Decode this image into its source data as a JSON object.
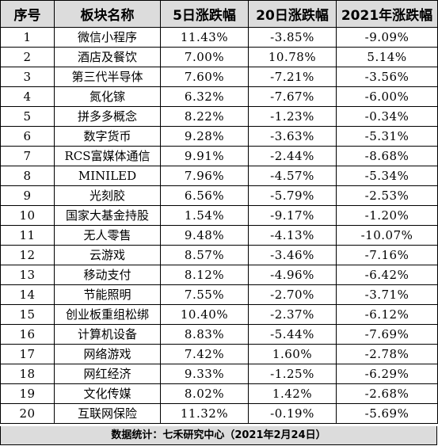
{
  "headers": {
    "index": "序号",
    "sector": "板块名称",
    "chg5": "5日涨跌幅",
    "chg20": "20日涨跌幅",
    "chg2021": "2021年涨跌幅"
  },
  "rows": [
    {
      "index": "1",
      "sector": "微信小程序",
      "chg5": "11.43%",
      "chg20": "-3.85%",
      "chg2021": "-9.09%"
    },
    {
      "index": "2",
      "sector": "酒店及餐饮",
      "chg5": "7.00%",
      "chg20": "10.78%",
      "chg2021": "5.14%"
    },
    {
      "index": "3",
      "sector": "第三代半导体",
      "chg5": "7.60%",
      "chg20": "-7.21%",
      "chg2021": "-3.56%"
    },
    {
      "index": "4",
      "sector": "氮化镓",
      "chg5": "6.32%",
      "chg20": "-7.67%",
      "chg2021": "-6.00%"
    },
    {
      "index": "5",
      "sector": "拼多多概念",
      "chg5": "8.22%",
      "chg20": "-1.23%",
      "chg2021": "-0.34%"
    },
    {
      "index": "6",
      "sector": "数字货币",
      "chg5": "9.28%",
      "chg20": "-3.63%",
      "chg2021": "-5.31%"
    },
    {
      "index": "7",
      "sector": "RCS富媒体通信",
      "chg5": "9.91%",
      "chg20": "-2.44%",
      "chg2021": "-8.68%"
    },
    {
      "index": "8",
      "sector": "MINILED",
      "chg5": "7.96%",
      "chg20": "-4.57%",
      "chg2021": "-5.34%"
    },
    {
      "index": "9",
      "sector": "光刻胶",
      "chg5": "6.56%",
      "chg20": "-5.79%",
      "chg2021": "-2.53%"
    },
    {
      "index": "10",
      "sector": "国家大基金持股",
      "chg5": "1.54%",
      "chg20": "-9.17%",
      "chg2021": "-1.20%"
    },
    {
      "index": "11",
      "sector": "无人零售",
      "chg5": "9.48%",
      "chg20": "-4.13%",
      "chg2021": "-10.07%"
    },
    {
      "index": "12",
      "sector": "云游戏",
      "chg5": "8.57%",
      "chg20": "-3.46%",
      "chg2021": "-7.16%"
    },
    {
      "index": "13",
      "sector": "移动支付",
      "chg5": "8.12%",
      "chg20": "-4.96%",
      "chg2021": "-6.42%"
    },
    {
      "index": "14",
      "sector": "节能照明",
      "chg5": "7.55%",
      "chg20": "-2.70%",
      "chg2021": "-3.71%"
    },
    {
      "index": "15",
      "sector": "创业板重组松绑",
      "chg5": "10.40%",
      "chg20": "-2.37%",
      "chg2021": "-6.12%"
    },
    {
      "index": "16",
      "sector": "计算机设备",
      "chg5": "8.83%",
      "chg20": "-5.44%",
      "chg2021": "-7.69%"
    },
    {
      "index": "17",
      "sector": "网络游戏",
      "chg5": "7.42%",
      "chg20": "1.60%",
      "chg2021": "-2.78%"
    },
    {
      "index": "18",
      "sector": "网红经济",
      "chg5": "9.33%",
      "chg20": "-1.25%",
      "chg2021": "-6.29%"
    },
    {
      "index": "19",
      "sector": "文化传媒",
      "chg5": "8.02%",
      "chg20": "1.42%",
      "chg2021": "-2.68%"
    },
    {
      "index": "20",
      "sector": "互联网保险",
      "chg5": "11.32%",
      "chg20": "-0.19%",
      "chg2021": "-5.69%"
    }
  ],
  "footer": "数据统计：七禾研究中心（2021年2月24日）",
  "colors": {
    "header_bg": "#dcdcdc",
    "footer_bg": "#dcdcdc",
    "border": "#000000"
  }
}
